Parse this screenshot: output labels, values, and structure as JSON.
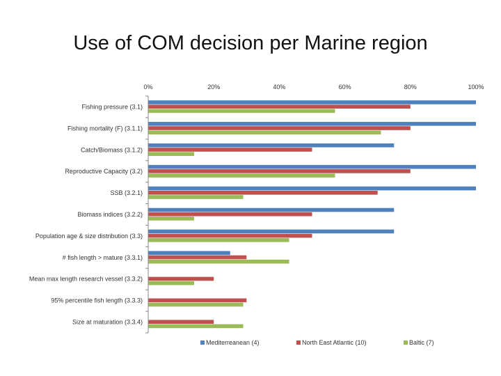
{
  "title": "Use of COM decision per Marine region",
  "chart_data": {
    "type": "bar",
    "orientation": "horizontal",
    "title": "Use of COM decision per Marine region",
    "xlabel": "",
    "ylabel": "",
    "xlim": [
      0,
      100
    ],
    "x_ticks": [
      "0%",
      "20%",
      "40%",
      "60%",
      "80%",
      "100%"
    ],
    "x_tick_values": [
      0,
      20,
      40,
      60,
      80,
      100
    ],
    "categories": [
      "Fishing pressure (3.1)",
      "Fishing mortality (F) (3.1.1)",
      "Catch/Biomass (3.1.2)",
      "Reproductive Capacity (3.2)",
      "SSB (3.2.1)",
      "Biomass indices (3.2.2)",
      "Population age & size distribution (3.3)",
      "# fish length > mature (3.3.1)",
      "Mean max length research vessel (3.3.2)",
      "95% percentile fish length (3.3.3)",
      "Size at maturation (3.3.4)"
    ],
    "series": [
      {
        "name": "Mediterreanean (4)",
        "color": "#4F81BD",
        "values": [
          100,
          100,
          75,
          100,
          100,
          75,
          75,
          25,
          0,
          0,
          0
        ]
      },
      {
        "name": "North East Atlantic (10)",
        "color": "#C0504D",
        "values": [
          80,
          80,
          50,
          80,
          70,
          50,
          50,
          30,
          20,
          30,
          20
        ]
      },
      {
        "name": "Baltic (7)",
        "color": "#9BBB59",
        "values": [
          57,
          71,
          14,
          57,
          29,
          14,
          43,
          43,
          14,
          29,
          29
        ]
      }
    ],
    "legend_position": "bottom",
    "grid": false
  }
}
